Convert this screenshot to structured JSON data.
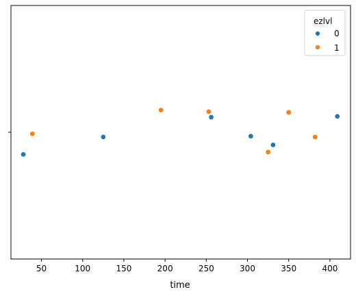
{
  "chart_data": {
    "type": "scatter",
    "title": "",
    "xlabel": "time",
    "ylabel": "",
    "xlim": [
      13,
      425
    ],
    "x_ticks": [
      50,
      100,
      150,
      200,
      250,
      300,
      350,
      400
    ],
    "legend": {
      "title": "ezlvl",
      "placement": "top-right"
    },
    "series": [
      {
        "name": "0",
        "color": "#1f77b4",
        "points": [
          {
            "x": 28,
            "y": -0.28
          },
          {
            "x": 125,
            "y": -0.06
          },
          {
            "x": 256,
            "y": 0.19
          },
          {
            "x": 304,
            "y": -0.05
          },
          {
            "x": 331,
            "y": -0.16
          },
          {
            "x": 409,
            "y": 0.2
          }
        ]
      },
      {
        "name": "1",
        "color": "#ff7f0e",
        "points": [
          {
            "x": 39,
            "y": -0.02
          },
          {
            "x": 195,
            "y": 0.28
          },
          {
            "x": 253,
            "y": 0.26
          },
          {
            "x": 325,
            "y": -0.25
          },
          {
            "x": 350,
            "y": 0.25
          },
          {
            "x": 382,
            "y": -0.06
          }
        ]
      }
    ],
    "ylim": [
      1.6,
      -1.6
    ],
    "grid": false
  }
}
